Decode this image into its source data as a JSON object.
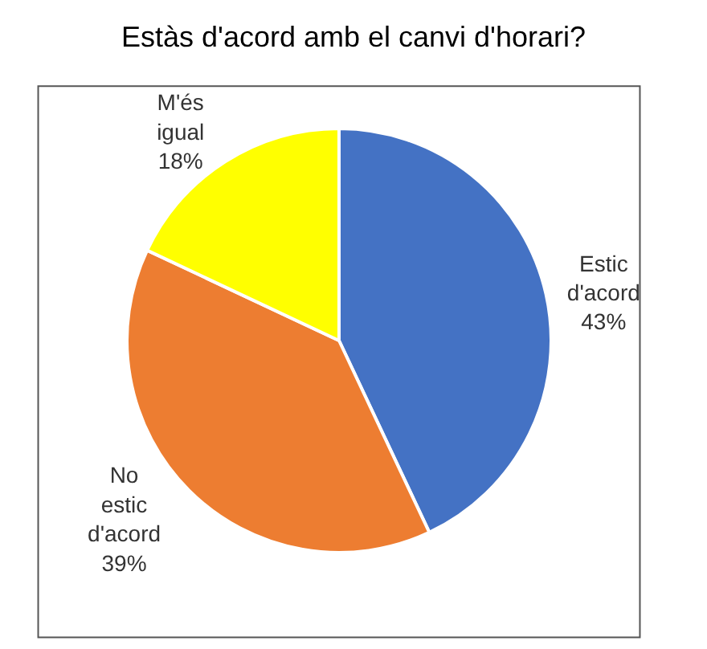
{
  "chart_data": {
    "type": "pie",
    "title": "Estàs d'acord amb el canvi d'horari?",
    "categories": [
      "Estic d'acord",
      "No estic d'acord",
      "M'és igual"
    ],
    "values": [
      43,
      39,
      18
    ],
    "colors": [
      "#4472c4",
      "#ed7d31",
      "#ffff00"
    ],
    "value_labels": [
      "43%",
      "39%",
      "18%"
    ],
    "legend": false
  }
}
